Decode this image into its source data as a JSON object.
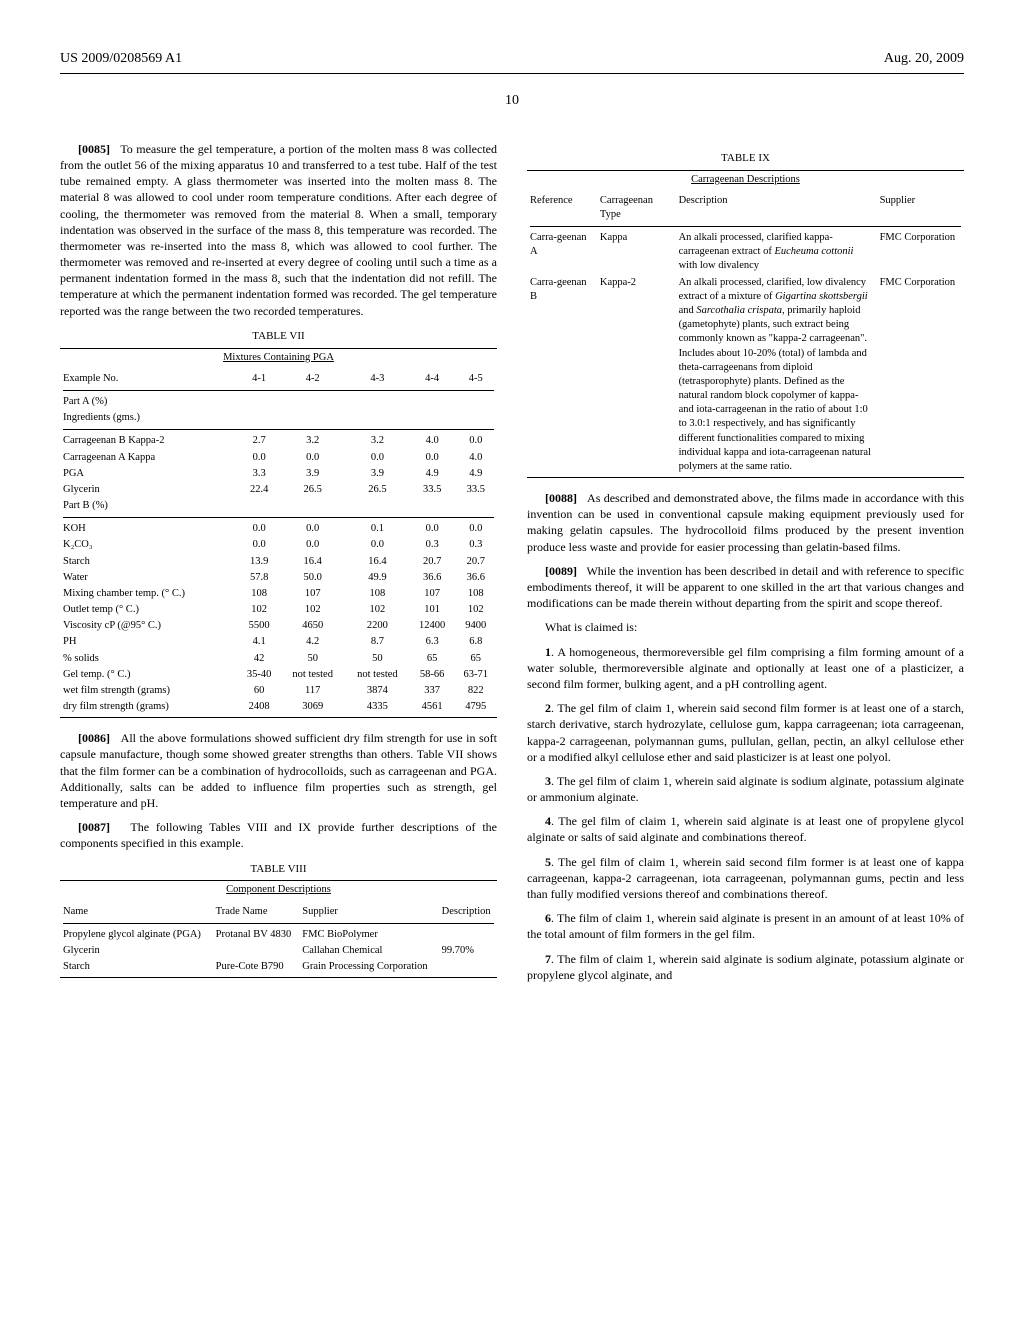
{
  "header": {
    "pub_number": "US 2009/0208569 A1",
    "pub_date": "Aug. 20, 2009",
    "page_number": "10"
  },
  "para_0085_num": "[0085]",
  "para_0085": "To measure the gel temperature, a portion of the molten mass 8 was collected from the outlet 56 of the mixing apparatus 10 and transferred to a test tube. Half of the test tube remained empty. A glass thermometer was inserted into the molten mass 8. The material 8 was allowed to cool under room temperature conditions. After each degree of cooling, the thermometer was removed from the material 8. When a small, temporary indentation was observed in the surface of the mass 8, this temperature was recorded. The thermometer was re-inserted into the mass 8, which was allowed to cool further. The thermometer was removed and re-inserted at every degree of cooling until such a time as a permanent indentation formed in the mass 8, such that the indentation did not refill. The temperature at which the permanent indentation formed was recorded. The gel temperature reported was the range between the two recorded temperatures.",
  "table7": {
    "label": "TABLE VII",
    "caption": "Mixtures Containing PGA",
    "hdr_example": "Example No.",
    "cols": [
      "4-1",
      "4-2",
      "4-3",
      "4-4",
      "4-5"
    ],
    "partA_label": "Part A (%)",
    "partA_sub": "Ingredients (gms.)",
    "rowsA": [
      {
        "l": "Carrageenan B Kappa-2",
        "v": [
          "2.7",
          "3.2",
          "3.2",
          "4.0",
          "0.0"
        ]
      },
      {
        "l": "Carrageenan A Kappa",
        "v": [
          "0.0",
          "0.0",
          "0.0",
          "0.0",
          "4.0"
        ]
      },
      {
        "l": "PGA",
        "v": [
          "3.3",
          "3.9",
          "3.9",
          "4.9",
          "4.9"
        ]
      },
      {
        "l": "Glycerin",
        "v": [
          "22.4",
          "26.5",
          "26.5",
          "33.5",
          "33.5"
        ]
      }
    ],
    "partB_label": "Part B (%)",
    "rowsB": [
      {
        "l": "KOH",
        "v": [
          "0.0",
          "0.0",
          "0.1",
          "0.0",
          "0.0"
        ]
      },
      {
        "l": "K₂CO₃",
        "v": [
          "0.0",
          "0.0",
          "0.0",
          "0.3",
          "0.3"
        ]
      },
      {
        "l": "Starch",
        "v": [
          "13.9",
          "16.4",
          "16.4",
          "20.7",
          "20.7"
        ]
      },
      {
        "l": "Water",
        "v": [
          "57.8",
          "50.0",
          "49.9",
          "36.6",
          "36.6"
        ]
      },
      {
        "l": "Mixing chamber temp. (° C.)",
        "v": [
          "108",
          "107",
          "108",
          "107",
          "108"
        ]
      },
      {
        "l": "Outlet temp (° C.)",
        "v": [
          "102",
          "102",
          "102",
          "101",
          "102"
        ]
      },
      {
        "l": "Viscosity cP (@95° C.)",
        "v": [
          "5500",
          "4650",
          "2200",
          "12400",
          "9400"
        ]
      },
      {
        "l": "PH",
        "v": [
          "4.1",
          "4.2",
          "8.7",
          "6.3",
          "6.8"
        ]
      },
      {
        "l": "% solids",
        "v": [
          "42",
          "50",
          "50",
          "65",
          "65"
        ]
      },
      {
        "l": "Gel temp. (° C.)",
        "v": [
          "35-40",
          "not tested",
          "not tested",
          "58-66",
          "63-71"
        ]
      },
      {
        "l": "wet film strength (grams)",
        "v": [
          "60",
          "117",
          "3874",
          "337",
          "822"
        ]
      },
      {
        "l": "dry film strength (grams)",
        "v": [
          "2408",
          "3069",
          "4335",
          "4561",
          "4795"
        ]
      }
    ]
  },
  "para_0086_num": "[0086]",
  "para_0086": "All the above formulations showed sufficient dry film strength for use in soft capsule manufacture, though some showed greater strengths than others. Table VII shows that the film former can be a combination of hydrocolloids, such as carrageenan and PGA. Additionally, salts can be added to influence film properties such as strength, gel temperature and pH.",
  "para_0087_num": "[0087]",
  "para_0087": "The following Tables VIII and IX provide further descriptions of the components specified in this example.",
  "table8": {
    "label": "TABLE VIII",
    "caption": "Component Descriptions",
    "hdrs": [
      "Name",
      "Trade Name",
      "Supplier",
      "Description"
    ],
    "rows": [
      {
        "c": [
          "Propylene glycol alginate (PGA)",
          "Protanal BV 4830",
          "FMC BioPolymer",
          ""
        ]
      },
      {
        "c": [
          "Glycerin",
          "",
          "Callahan Chemical",
          "99.70%"
        ]
      },
      {
        "c": [
          "Starch",
          "Pure-Cote B790",
          "Grain Processing Corporation",
          ""
        ]
      }
    ]
  },
  "table9": {
    "label": "TABLE IX",
    "caption": "Carrageenan Descriptions",
    "hdrs": [
      "Reference",
      "Carrageenan Type",
      "Description",
      "Supplier"
    ],
    "rowA": {
      "ref": "Carra-geenan A",
      "type": "Kappa",
      "desc_pre": "An alkali processed, clarified kappa-carrageenan extract of ",
      "desc_ital": "Eucheuma cottonii",
      "desc_post": " with low divalency",
      "supplier": "FMC Corporation"
    },
    "rowB": {
      "ref": "Carra-geenan B",
      "type": "Kappa-2",
      "desc_pre": "An alkali processed, clarified, low divalency extract of a mixture of ",
      "desc_ital1": "Gigartina skottsbergii",
      "desc_mid": " and ",
      "desc_ital2": "Sarcothalia crispata",
      "desc_post": ", primarily haploid (gametophyte) plants, such extract being commonly known as \"kappa-2 carrageenan\". Includes about 10-20% (total) of lambda and theta-carrageenans from diploid (tetrasporophyte) plants. Defined as the natural random block copolymer of kappa- and iota-carrageenan in the ratio of about 1:0 to 3.0:1 respectively, and has significantly different functionalities compared to mixing individual kappa and iota-carrageenan natural polymers at the same ratio.",
      "supplier": "FMC Corporation"
    }
  },
  "para_0088_num": "[0088]",
  "para_0088": "As described and demonstrated above, the films made in accordance with this invention can be used in conventional capsule making equipment previously used for making gelatin capsules. The hydrocolloid films produced by the present invention produce less waste and provide for easier processing than gelatin-based films.",
  "para_0089_num": "[0089]",
  "para_0089": "While the invention has been described in detail and with reference to specific embodiments thereof, it will be apparent to one skilled in the art that various changes and modifications can be made therein without departing from the spirit and scope thereof.",
  "claims_intro": "What is claimed is:",
  "claims": [
    {
      "n": "1",
      "t": ". A homogeneous, thermoreversible gel film comprising a film forming amount of a water soluble, thermoreversible alginate and optionally at least one of a plasticizer, a second film former, bulking agent, and a pH controlling agent."
    },
    {
      "n": "2",
      "t": ". The gel film of claim 1, wherein said second film former is at least one of a starch, starch derivative, starch hydrozylate, cellulose gum, kappa carrageenan; iota carrageenan, kappa-2 carrageenan, polymannan gums, pullulan, gellan, pectin, an alkyl cellulose ether or a modified alkyl cellulose ether and said plasticizer is at least one polyol."
    },
    {
      "n": "3",
      "t": ". The gel film of claim 1, wherein said alginate is sodium alginate, potassium alginate or ammonium alginate."
    },
    {
      "n": "4",
      "t": ". The gel film of claim 1, wherein said alginate is at least one of propylene glycol alginate or salts of said alginate and combinations thereof."
    },
    {
      "n": "5",
      "t": ". The gel film of claim 1, wherein said second film former is at least one of kappa carrageenan, kappa-2 carrageenan, iota carrageenan, polymannan gums, pectin and less than fully modified versions thereof and combinations thereof."
    },
    {
      "n": "6",
      "t": ". The film of claim 1, wherein said alginate is present in an amount of at least 10% of the total amount of film formers in the gel film."
    },
    {
      "n": "7",
      "t": ". The film of claim 1, wherein said alginate is sodium alginate, potassium alginate or propylene glycol alginate, and"
    }
  ]
}
